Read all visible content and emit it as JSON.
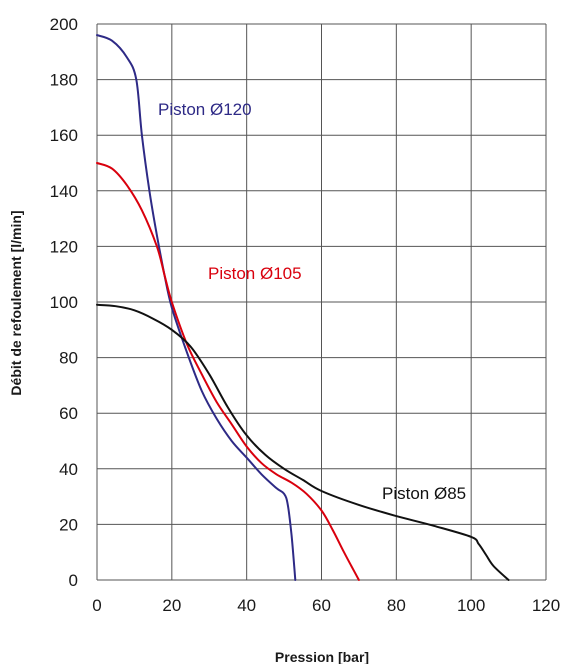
{
  "chart_data": {
    "type": "line",
    "xlabel": "Pression [bar]",
    "ylabel": "Débit de refoulement [l/min]",
    "xlim": [
      0,
      120
    ],
    "ylim": [
      0,
      200
    ],
    "xticks": [
      "0",
      "20",
      "40",
      "60",
      "80",
      "100",
      "120"
    ],
    "yticks": [
      "0",
      "20",
      "40",
      "60",
      "80",
      "100",
      "120",
      "140",
      "160",
      "180",
      "200"
    ],
    "grid": true,
    "series": [
      {
        "name": "Piston Ø120",
        "color": "#2e2a86",
        "points": [
          [
            0,
            196
          ],
          [
            4,
            194
          ],
          [
            8,
            188
          ],
          [
            10.5,
            180
          ],
          [
            12,
            160
          ],
          [
            14,
            140
          ],
          [
            16,
            124
          ],
          [
            18,
            110
          ],
          [
            20,
            98
          ],
          [
            24,
            82
          ],
          [
            28,
            68
          ],
          [
            32,
            58
          ],
          [
            36,
            50
          ],
          [
            40,
            44
          ],
          [
            44,
            38
          ],
          [
            48,
            33
          ],
          [
            50,
            31
          ],
          [
            51,
            27
          ],
          [
            52,
            16
          ],
          [
            52.7,
            5
          ],
          [
            53,
            0
          ]
        ]
      },
      {
        "name": "Piston Ø105",
        "color": "#d9000d",
        "points": [
          [
            0,
            150
          ],
          [
            4,
            148
          ],
          [
            8,
            142
          ],
          [
            12,
            133
          ],
          [
            16,
            120
          ],
          [
            18,
            110
          ],
          [
            20,
            100
          ],
          [
            24,
            85
          ],
          [
            28,
            74
          ],
          [
            32,
            64
          ],
          [
            36,
            56
          ],
          [
            40,
            48
          ],
          [
            44,
            42
          ],
          [
            48,
            38
          ],
          [
            52,
            35
          ],
          [
            56,
            31
          ],
          [
            60,
            25
          ],
          [
            63,
            18
          ],
          [
            66,
            10
          ],
          [
            68,
            5
          ],
          [
            70,
            0
          ]
        ]
      },
      {
        "name": "Piston Ø85",
        "color": "#111111",
        "points": [
          [
            0,
            99
          ],
          [
            5,
            98.5
          ],
          [
            10,
            97
          ],
          [
            15,
            94
          ],
          [
            20,
            90
          ],
          [
            25,
            84
          ],
          [
            30,
            74
          ],
          [
            35,
            62
          ],
          [
            40,
            52
          ],
          [
            45,
            45
          ],
          [
            50,
            40
          ],
          [
            55,
            36
          ],
          [
            60,
            32
          ],
          [
            70,
            27
          ],
          [
            80,
            23
          ],
          [
            90,
            19.5
          ],
          [
            100,
            15.5
          ],
          [
            102,
            13
          ],
          [
            104,
            9
          ],
          [
            106,
            5
          ],
          [
            110,
            0
          ]
        ]
      }
    ]
  }
}
